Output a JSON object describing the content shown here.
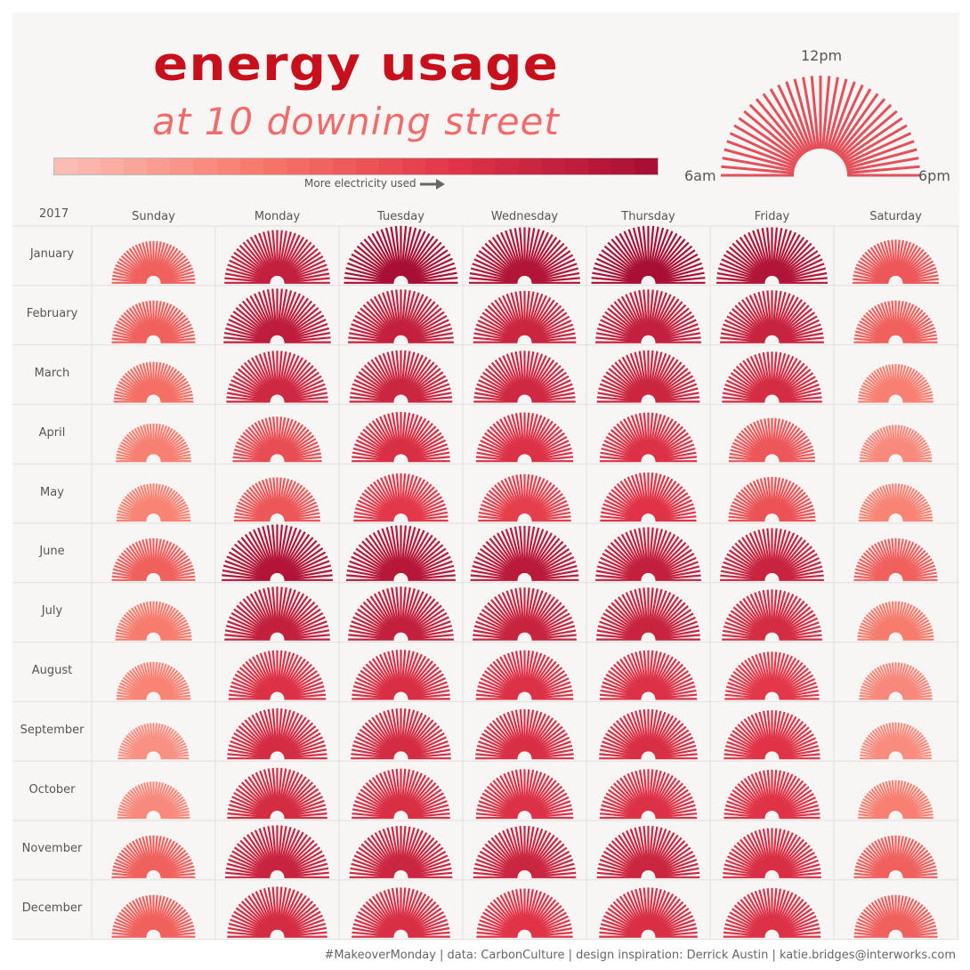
{
  "title": "energy usage",
  "subtitle": "at 10 downing street",
  "legend": {
    "label": "More electricity used",
    "colors": [
      "#fcbdb5",
      "#f7796a",
      "#e23548",
      "#a90f35"
    ]
  },
  "clock_legend": {
    "noon": "12pm",
    "morning": "6am",
    "evening": "6pm"
  },
  "footer": "#MakeoverMonday | data: CarbonCulture | design inspiration: Derrick Austin | katie.bridges@interworks.com",
  "chart_data": {
    "type": "heatmap",
    "title": "energy usage",
    "subtitle": "at 10 downing street",
    "year": "2017",
    "x_categories": [
      "Sunday",
      "Monday",
      "Tuesday",
      "Wednesday",
      "Thursday",
      "Friday",
      "Saturday"
    ],
    "y_categories": [
      "January",
      "February",
      "March",
      "April",
      "May",
      "June",
      "July",
      "August",
      "September",
      "October",
      "November",
      "December"
    ],
    "encoding": "Each cell is a radial day-clock from 6am to 6pm; ray length and color represent electricity used.",
    "values": [
      [
        0.45,
        0.85,
        1.0,
        0.95,
        1.0,
        0.95,
        0.5
      ],
      [
        0.45,
        0.88,
        0.85,
        0.8,
        0.85,
        0.82,
        0.45
      ],
      [
        0.38,
        0.78,
        0.8,
        0.78,
        0.8,
        0.75,
        0.3
      ],
      [
        0.3,
        0.55,
        0.72,
        0.7,
        0.7,
        0.5,
        0.25
      ],
      [
        0.28,
        0.5,
        0.65,
        0.62,
        0.68,
        0.52,
        0.28
      ],
      [
        0.45,
        0.95,
        0.92,
        0.9,
        0.85,
        0.82,
        0.45
      ],
      [
        0.32,
        0.85,
        0.85,
        0.82,
        0.82,
        0.75,
        0.32
      ],
      [
        0.28,
        0.7,
        0.72,
        0.7,
        0.7,
        0.65,
        0.26
      ],
      [
        0.22,
        0.75,
        0.75,
        0.72,
        0.72,
        0.68,
        0.24
      ],
      [
        0.25,
        0.75,
        0.72,
        0.7,
        0.7,
        0.68,
        0.3
      ],
      [
        0.45,
        0.82,
        0.8,
        0.8,
        0.8,
        0.72,
        0.45
      ],
      [
        0.45,
        0.75,
        0.72,
        0.68,
        0.72,
        0.7,
        0.45
      ]
    ]
  }
}
